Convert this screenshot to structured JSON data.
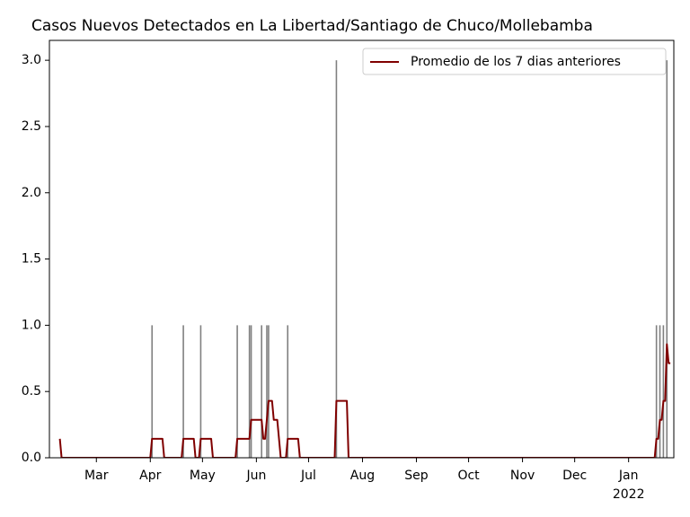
{
  "chart_data": {
    "type": "combo",
    "title": "Casos Nuevos Detectados en La Libertad/Santiago de Chuco/Mollebamba",
    "xlim": [
      -27,
      332
    ],
    "xticks": [
      {
        "value": 0,
        "label": "Mar"
      },
      {
        "value": 31,
        "label": "Apr"
      },
      {
        "value": 61,
        "label": "May"
      },
      {
        "value": 92,
        "label": "Jun"
      },
      {
        "value": 122,
        "label": "Jul"
      },
      {
        "value": 153,
        "label": "Aug"
      },
      {
        "value": 184,
        "label": "Sep"
      },
      {
        "value": 214,
        "label": "Oct"
      },
      {
        "value": 245,
        "label": "Nov"
      },
      {
        "value": 275,
        "label": "Dec"
      },
      {
        "value": 306,
        "label": "Jan",
        "year": "2022"
      }
    ],
    "ylim": [
      0,
      3.15
    ],
    "yticks": [
      {
        "value": 0,
        "label": "0.0"
      },
      {
        "value": 0.5,
        "label": "0.5"
      },
      {
        "value": 1,
        "label": "1.0"
      },
      {
        "value": 1.5,
        "label": "1.5"
      },
      {
        "value": 2,
        "label": "2.0"
      },
      {
        "value": 2.5,
        "label": "2.5"
      },
      {
        "value": 3,
        "label": "3.0"
      }
    ],
    "legend": "upper right",
    "series": [
      {
        "type": "bar",
        "color": "#808080",
        "x": [
          32,
          50,
          60,
          81,
          88,
          89,
          95,
          98,
          99,
          110,
          138,
          322,
          324,
          326,
          328
        ],
        "values": [
          1,
          1,
          1,
          1,
          1,
          1,
          1,
          1,
          1,
          1,
          3,
          1,
          1,
          1,
          3
        ]
      },
      {
        "type": "line",
        "name": "Promedio de los 7 dias anteriores",
        "color": "#800000",
        "x": [
          -21,
          -20,
          31,
          32,
          38,
          39,
          49,
          50,
          56,
          57,
          59,
          60,
          66,
          67,
          80,
          81,
          88,
          89,
          95,
          96,
          97,
          98,
          99,
          101,
          102,
          104,
          105,
          106,
          109,
          110,
          116,
          117,
          137,
          138,
          144,
          145,
          321,
          322,
          323,
          324,
          325,
          326,
          327,
          328,
          329,
          330
        ],
        "values": [
          0.143,
          0,
          0,
          0.143,
          0.143,
          0,
          0,
          0.143,
          0.143,
          0,
          0,
          0.143,
          0.143,
          0,
          0,
          0.143,
          0.143,
          0.286,
          0.286,
          0.143,
          0.143,
          0.286,
          0.429,
          0.429,
          0.286,
          0.286,
          0.143,
          0,
          0,
          0.143,
          0.143,
          0,
          0,
          0.429,
          0.429,
          0,
          0,
          0.143,
          0.143,
          0.286,
          0.286,
          0.429,
          0.429,
          0.857,
          0.714,
          0.714
        ]
      }
    ]
  }
}
